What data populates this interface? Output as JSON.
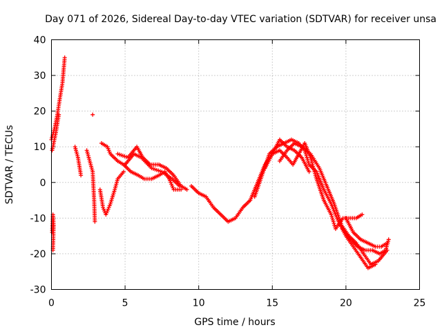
{
  "chart_data": {
    "type": "scatter",
    "title": "Day 071 of 2026, Sidereal Day-to-day VTEC variation (SDTVAR) for receiver unsa",
    "xlabel": "GPS time / hours",
    "ylabel": "SDTVAR / TECUs",
    "xlim": [
      0,
      25
    ],
    "ylim": [
      -30,
      40
    ],
    "xticks": [
      "0",
      "5",
      "10",
      "15",
      "20",
      "25"
    ],
    "yticks": [
      "-30",
      "-20",
      "-10",
      "0",
      "10",
      "20",
      "30",
      "40"
    ],
    "grid": true,
    "marker": "plus",
    "color": "#ff0000",
    "series": [
      {
        "name": "SDTVAR",
        "traces": [
          [
            [
              0.0,
              12
            ],
            [
              0.2,
              15
            ],
            [
              0.4,
              19
            ],
            [
              0.55,
              23
            ],
            [
              0.75,
              28
            ],
            [
              0.9,
              35
            ]
          ],
          [
            [
              0.05,
              9
            ],
            [
              0.3,
              14
            ],
            [
              0.5,
              19
            ]
          ],
          [
            [
              0.05,
              -14
            ],
            [
              0.1,
              -9
            ],
            [
              0.15,
              -12
            ],
            [
              0.1,
              -19
            ]
          ],
          [
            [
              1.6,
              10
            ],
            [
              1.8,
              7
            ],
            [
              2.0,
              2
            ]
          ],
          [
            [
              2.4,
              9
            ],
            [
              2.6,
              6
            ],
            [
              2.8,
              3
            ],
            [
              2.9,
              -5
            ],
            [
              2.95,
              -11
            ]
          ],
          [
            [
              2.8,
              19
            ]
          ],
          [
            [
              3.3,
              -2
            ],
            [
              3.5,
              -7
            ],
            [
              3.7,
              -9
            ],
            [
              4.0,
              -6
            ],
            [
              4.3,
              -2
            ],
            [
              4.5,
              1
            ],
            [
              4.9,
              3
            ]
          ],
          [
            [
              3.4,
              11
            ],
            [
              3.8,
              10
            ],
            [
              4.0,
              8
            ],
            [
              4.5,
              6
            ],
            [
              4.9,
              5
            ],
            [
              5.4,
              3
            ],
            [
              5.9,
              2
            ],
            [
              6.3,
              1
            ],
            [
              6.8,
              1
            ],
            [
              7.3,
              2
            ],
            [
              7.7,
              3
            ],
            [
              8.0,
              1
            ],
            [
              8.3,
              -2
            ],
            [
              8.8,
              -2
            ]
          ],
          [
            [
              4.5,
              8
            ],
            [
              5.2,
              7
            ],
            [
              5.8,
              10
            ],
            [
              6.2,
              7
            ],
            [
              6.7,
              5
            ],
            [
              7.3,
              5
            ],
            [
              7.8,
              4
            ],
            [
              8.3,
              2
            ],
            [
              8.8,
              -1
            ],
            [
              9.2,
              -2
            ]
          ],
          [
            [
              5.0,
              5
            ],
            [
              5.6,
              8
            ],
            [
              6.1,
              7
            ],
            [
              6.8,
              4
            ],
            [
              7.5,
              3
            ],
            [
              8.2,
              1
            ],
            [
              8.7,
              -1
            ]
          ],
          [
            [
              9.5,
              -1
            ],
            [
              10.0,
              -3
            ],
            [
              10.5,
              -4
            ],
            [
              11.0,
              -7
            ],
            [
              11.5,
              -9
            ],
            [
              12.0,
              -11
            ],
            [
              12.5,
              -10
            ],
            [
              13.0,
              -7
            ],
            [
              13.5,
              -5
            ],
            [
              14.0,
              0
            ],
            [
              14.5,
              5
            ],
            [
              15.0,
              8
            ],
            [
              15.5,
              12
            ],
            [
              16.0,
              10
            ],
            [
              16.5,
              9
            ],
            [
              17.0,
              7
            ],
            [
              17.5,
              3
            ]
          ],
          [
            [
              13.8,
              -4
            ],
            [
              14.3,
              2
            ],
            [
              14.8,
              8
            ],
            [
              15.3,
              10
            ],
            [
              15.8,
              11
            ],
            [
              16.3,
              12
            ],
            [
              16.8,
              11
            ],
            [
              17.2,
              9
            ],
            [
              17.5,
              5
            ],
            [
              18.0,
              3
            ],
            [
              18.5,
              -2
            ],
            [
              19.0,
              -6
            ],
            [
              19.5,
              -11
            ],
            [
              20.0,
              -15
            ],
            [
              20.5,
              -18
            ],
            [
              21.0,
              -21
            ],
            [
              21.5,
              -24
            ],
            [
              22.0,
              -23
            ]
          ],
          [
            [
              14.5,
              4
            ],
            [
              15.0,
              8
            ],
            [
              15.5,
              9
            ],
            [
              16.0,
              7
            ],
            [
              16.4,
              5
            ],
            [
              16.8,
              8
            ],
            [
              17.2,
              11
            ],
            [
              17.6,
              7
            ],
            [
              18.0,
              1
            ],
            [
              18.5,
              -5
            ],
            [
              19.0,
              -9
            ],
            [
              19.3,
              -13
            ],
            [
              19.8,
              -10
            ],
            [
              20.2,
              -10
            ],
            [
              20.7,
              -10
            ],
            [
              21.1,
              -9
            ]
          ],
          [
            [
              15.5,
              6
            ],
            [
              16.0,
              9
            ],
            [
              16.5,
              11
            ],
            [
              17.0,
              10
            ],
            [
              17.6,
              8
            ],
            [
              18.2,
              4
            ],
            [
              18.7,
              -1
            ],
            [
              19.2,
              -6
            ],
            [
              19.7,
              -12
            ],
            [
              20.2,
              -15
            ],
            [
              20.7,
              -17
            ],
            [
              21.2,
              -20
            ],
            [
              21.7,
              -23
            ],
            [
              22.2,
              -22
            ],
            [
              22.8,
              -19
            ]
          ],
          [
            [
              19.8,
              -13
            ],
            [
              20.3,
              -16
            ],
            [
              20.8,
              -18
            ],
            [
              21.3,
              -19
            ],
            [
              21.8,
              -19
            ],
            [
              22.3,
              -20
            ],
            [
              22.7,
              -19
            ],
            [
              22.9,
              -16
            ]
          ],
          [
            [
              20.0,
              -10
            ],
            [
              20.5,
              -14
            ],
            [
              21.0,
              -16
            ],
            [
              21.5,
              -17
            ],
            [
              22.0,
              -18
            ],
            [
              22.4,
              -18
            ],
            [
              22.8,
              -17
            ]
          ]
        ]
      }
    ]
  }
}
